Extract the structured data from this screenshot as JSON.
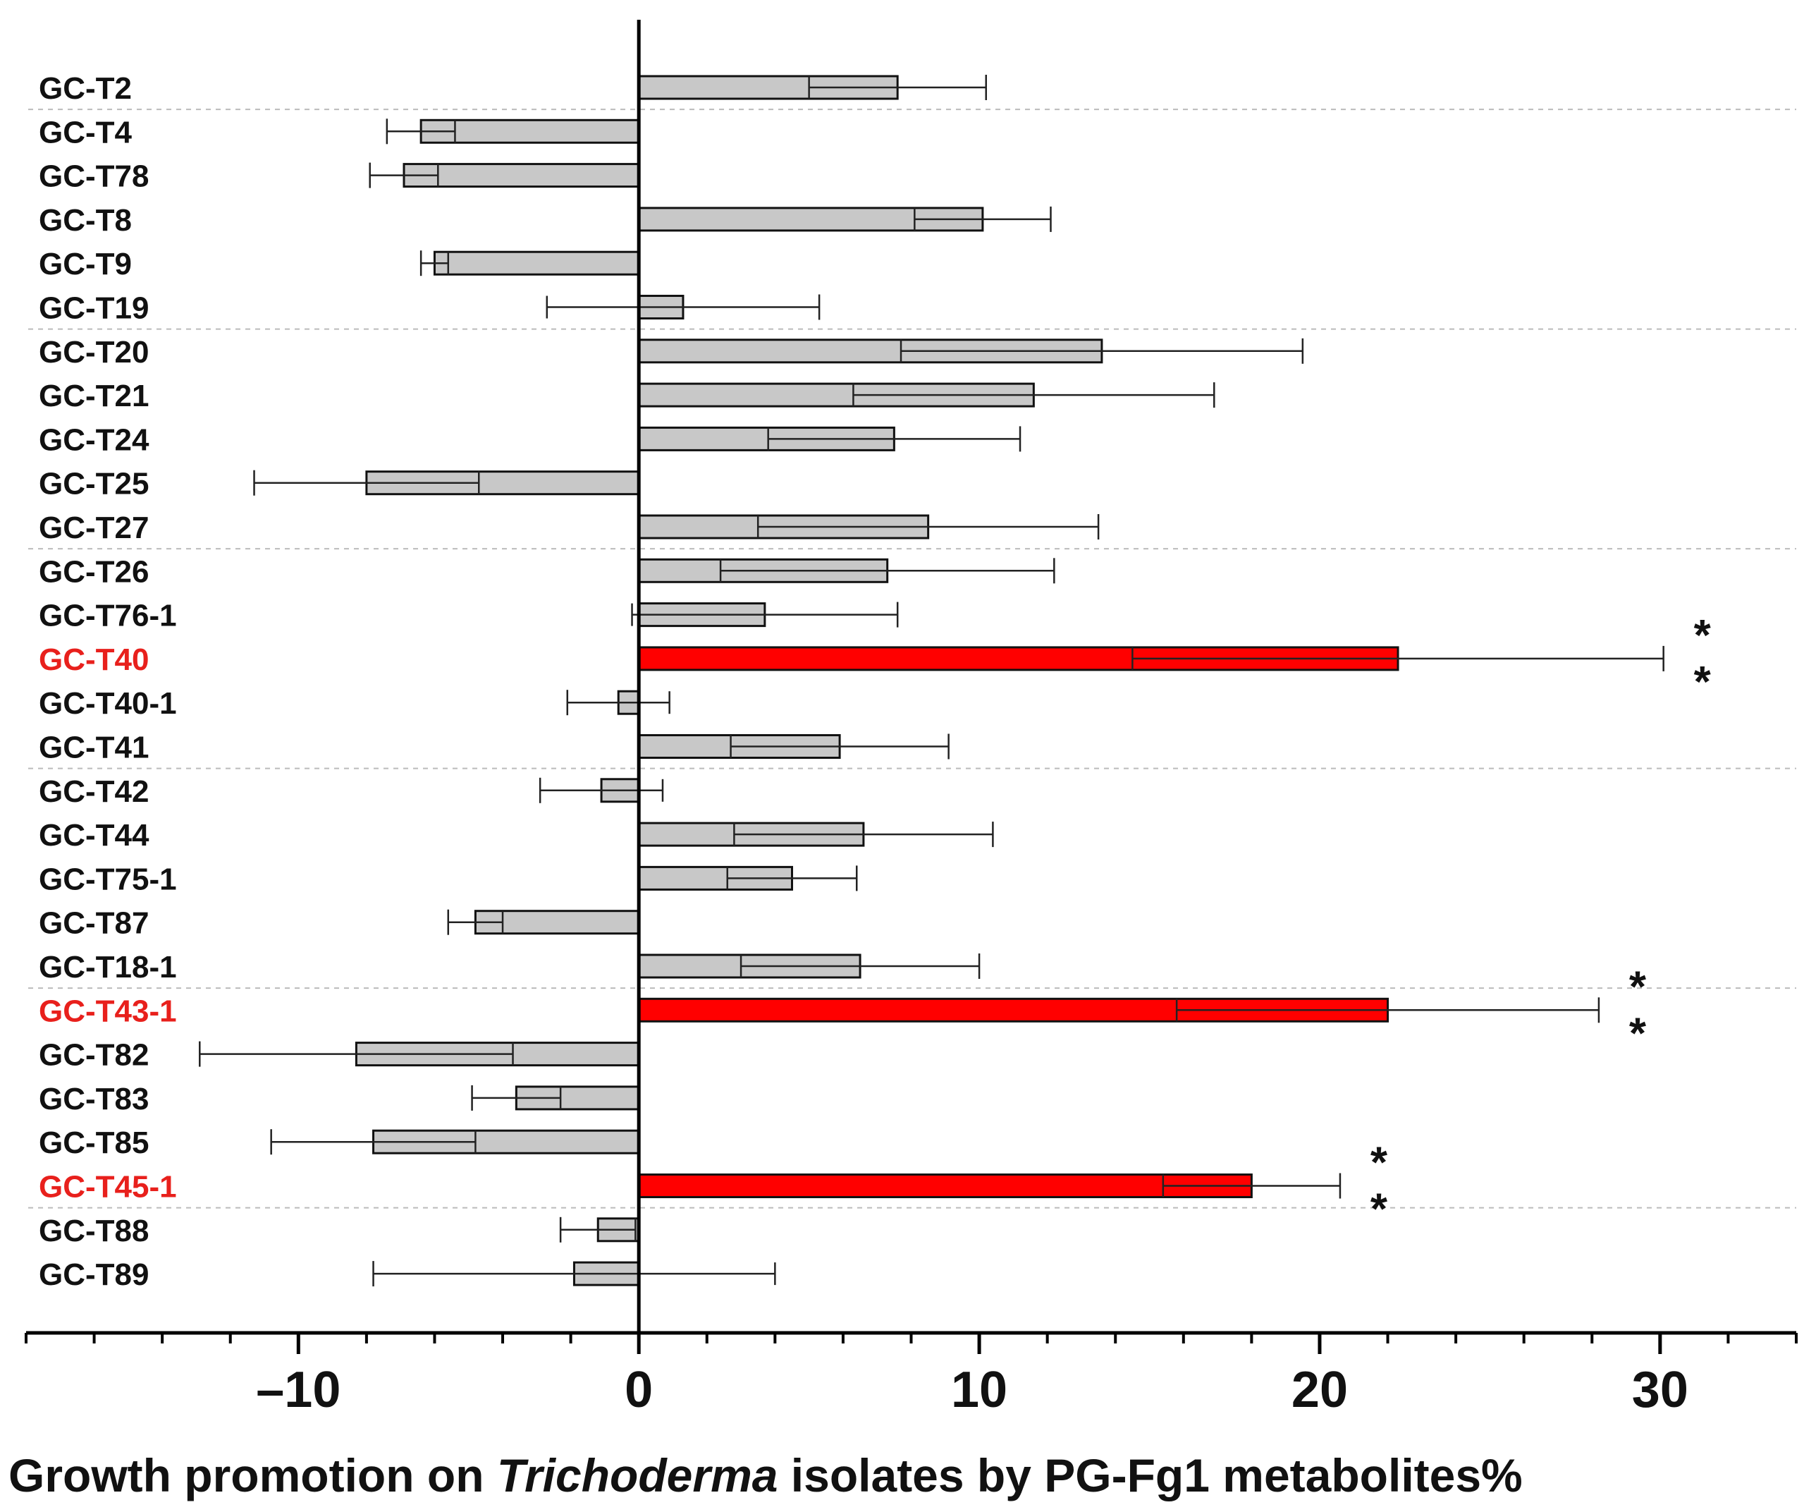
{
  "chart_data": {
    "type": "bar",
    "orientation": "horizontal",
    "categories": [
      "GC-T2",
      "GC-T4",
      "GC-T78",
      "GC-T8",
      "GC-T9",
      "GC-T19",
      "GC-T20",
      "GC-T21",
      "GC-T24",
      "GC-T25",
      "GC-T27",
      "GC-T26",
      "GC-T76-1",
      "GC-T40",
      "GC-T40-1",
      "GC-T41",
      "GC-T42",
      "GC-T44",
      "GC-T75-1",
      "GC-T87",
      "GC-T18-1",
      "GC-T43-1",
      "GC-T82",
      "GC-T83",
      "GC-T85",
      "GC-T45-1",
      "GC-T88",
      "GC-T89"
    ],
    "values": [
      7.6,
      -6.4,
      -6.9,
      10.1,
      -6.0,
      1.3,
      13.6,
      11.6,
      7.5,
      -8.0,
      8.5,
      7.3,
      3.7,
      22.3,
      -0.6,
      5.9,
      -1.1,
      6.6,
      4.5,
      -4.8,
      6.5,
      22.0,
      -8.3,
      -3.6,
      -7.8,
      18.0,
      -1.2,
      -1.9
    ],
    "errors": [
      2.6,
      1.0,
      1.0,
      2.0,
      0.4,
      4.0,
      5.9,
      5.3,
      3.7,
      3.3,
      5.0,
      4.9,
      3.9,
      7.8,
      1.5,
      3.2,
      1.8,
      3.8,
      1.9,
      0.8,
      3.5,
      6.2,
      4.6,
      1.3,
      3.0,
      2.6,
      1.1,
      5.9
    ],
    "highlighted": [
      "GC-T40",
      "GC-T43-1",
      "GC-T45-1"
    ],
    "significance": [
      {
        "category": "GC-T40",
        "marks": [
          "*",
          "*"
        ]
      },
      {
        "category": "GC-T43-1",
        "marks": [
          "*",
          "*"
        ]
      },
      {
        "category": "GC-T45-1",
        "marks": [
          "*",
          "*"
        ]
      }
    ],
    "xlim": [
      -18,
      34
    ],
    "xticks": [
      -10,
      0,
      10,
      20,
      30
    ],
    "xtick_labels": [
      "–10",
      "0",
      "10",
      "20",
      "30"
    ],
    "xlabel_parts": [
      {
        "text": "Growth promotion on ",
        "italic": false
      },
      {
        "text": "Trichoderma",
        "italic": true
      },
      {
        "text": " isolates by PG-Fg1 metabolites%",
        "italic": false
      }
    ],
    "group_separators_after": [
      "GC-T2",
      "GC-T19",
      "GC-T27",
      "GC-T41",
      "GC-T18-1",
      "GC-T45-1"
    ],
    "colors": {
      "bar": "#c8c8c8",
      "highlight_bar": "#ff0000",
      "highlight_label": "#e8201c",
      "text": "#111111",
      "separator": "#bbbbbb"
    }
  }
}
